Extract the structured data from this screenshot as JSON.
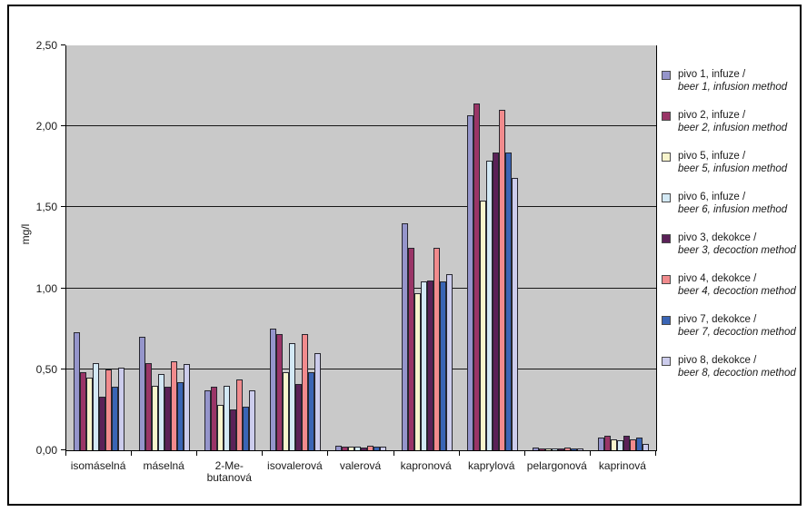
{
  "chart_data": {
    "type": "bar",
    "title": "",
    "xlabel": "",
    "ylabel": "mg/l",
    "ylim": [
      0,
      2.5
    ],
    "ytick_step": 0.5,
    "ytick_labels": [
      "0,00",
      "0,50",
      "1,00",
      "1,50",
      "2,00",
      "2,50"
    ],
    "grid": true,
    "plot_background": "#c9c9c9",
    "legend_position": "right",
    "categories": [
      "isomáselná",
      "máselná",
      "2-Me-butanová",
      "isovalerová",
      "valerová",
      "kapronová",
      "kaprylová",
      "pelargonová",
      "kaprinová"
    ],
    "category_display_lines": [
      [
        "isomáselná"
      ],
      [
        "máselná"
      ],
      [
        "2-Me-",
        "butanová"
      ],
      [
        "isovalerová"
      ],
      [
        "valerová"
      ],
      [
        "kapronová"
      ],
      [
        "kaprylová"
      ],
      [
        "pelargonová"
      ],
      [
        "kaprinová"
      ]
    ],
    "series": [
      {
        "name": "pivo 1, infuze /",
        "name_en": "beer 1, infusion method",
        "color": "#9595CB",
        "values": [
          0.73,
          0.7,
          0.37,
          0.75,
          0.03,
          1.4,
          2.07,
          0.015,
          0.08
        ]
      },
      {
        "name": "pivo 2, infuze /",
        "name_en": "beer 2, infusion method",
        "color": "#9A3567",
        "values": [
          0.48,
          0.54,
          0.39,
          0.72,
          0.02,
          1.25,
          2.14,
          0.01,
          0.09
        ]
      },
      {
        "name": "pivo 5, infuze /",
        "name_en": "beer 5, infusion method",
        "color": "#F7F4CC",
        "values": [
          0.45,
          0.4,
          0.28,
          0.48,
          0.02,
          0.97,
          1.54,
          0.01,
          0.07
        ]
      },
      {
        "name": "pivo 6, infuze /",
        "name_en": "beer 6, infusion method",
        "color": "#D3E9F5",
        "values": [
          0.54,
          0.47,
          0.4,
          0.66,
          0.02,
          1.04,
          1.79,
          0.01,
          0.06
        ]
      },
      {
        "name": "pivo 3, dekokce /",
        "name_en": "beer 3, decoction method",
        "color": "#5B2158",
        "values": [
          0.33,
          0.39,
          0.25,
          0.41,
          0.015,
          1.05,
          1.84,
          0.01,
          0.09
        ]
      },
      {
        "name": "pivo 4, dekokce /",
        "name_en": "beer 4, decoction method",
        "color": "#F18B8D",
        "values": [
          0.5,
          0.55,
          0.44,
          0.72,
          0.03,
          1.25,
          2.1,
          0.015,
          0.07
        ]
      },
      {
        "name": "pivo 7, dekokce /",
        "name_en": "beer 7, decoction method",
        "color": "#3A65B5",
        "values": [
          0.39,
          0.42,
          0.27,
          0.48,
          0.025,
          1.04,
          1.84,
          0.01,
          0.08
        ]
      },
      {
        "name": "pivo 8, dekokce /",
        "name_en": "beer 8, decoction method",
        "color": "#CCCCEC",
        "values": [
          0.51,
          0.53,
          0.37,
          0.6,
          0.02,
          1.09,
          1.68,
          0.01,
          0.04
        ]
      }
    ]
  }
}
